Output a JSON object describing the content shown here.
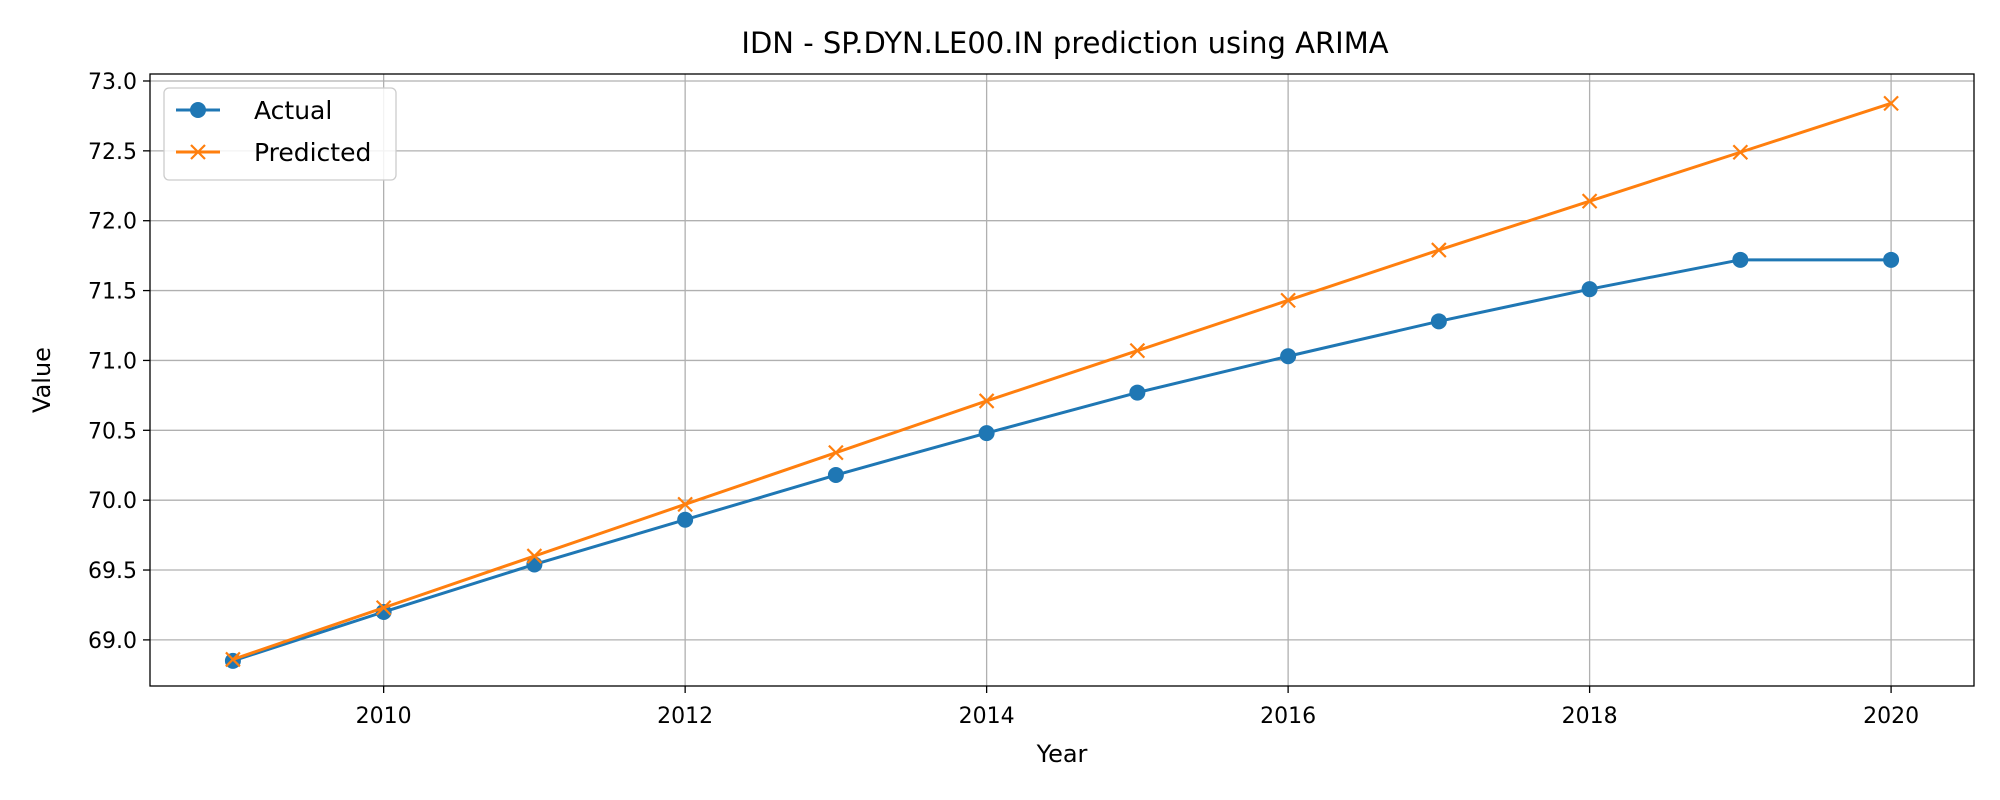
{
  "chart_data": {
    "type": "line",
    "title": "IDN - SP.DYN.LE00.IN prediction using ARIMA",
    "xlabel": "Year",
    "ylabel": "Value",
    "x": [
      2009,
      2010,
      2011,
      2012,
      2013,
      2014,
      2015,
      2016,
      2017,
      2018,
      2019,
      2020
    ],
    "xlim": [
      2008.45,
      2020.55
    ],
    "ylim": [
      68.67,
      73.05
    ],
    "xticks": [
      "2010",
      "2012",
      "2014",
      "2016",
      "2018",
      "2020"
    ],
    "yticks": [
      "69.0",
      "69.5",
      "70.0",
      "70.5",
      "71.0",
      "71.5",
      "72.0",
      "72.5",
      "73.0"
    ],
    "grid": true,
    "legend_position": "top-left",
    "series": [
      {
        "name": "Actual",
        "color": "#1f77b4",
        "marker": "circle",
        "values": [
          68.85,
          69.2,
          69.54,
          69.86,
          70.18,
          70.48,
          70.77,
          71.03,
          71.28,
          71.51,
          71.72,
          71.72
        ]
      },
      {
        "name": "Predicted",
        "color": "#ff7f0e",
        "marker": "x",
        "values": [
          68.86,
          69.23,
          69.6,
          69.97,
          70.34,
          70.71,
          71.07,
          71.43,
          71.79,
          72.14,
          72.49,
          72.84
        ]
      }
    ]
  }
}
